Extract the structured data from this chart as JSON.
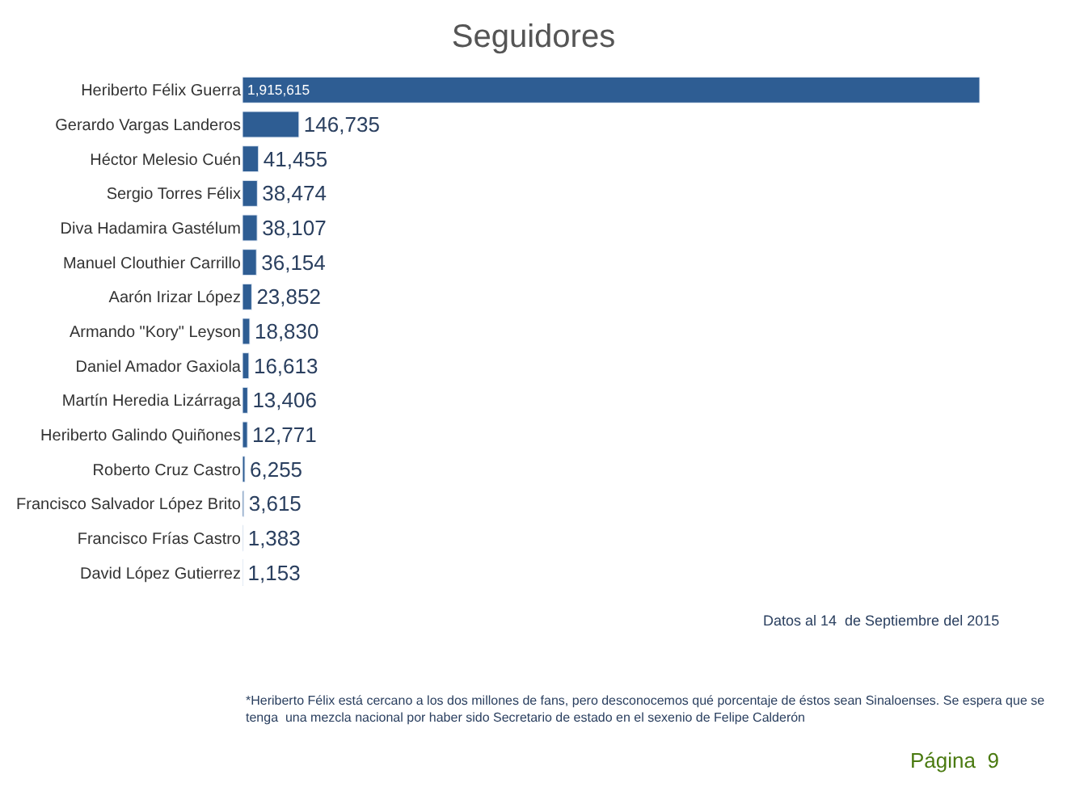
{
  "chart_data": {
    "type": "bar",
    "orientation": "horizontal",
    "title": "Seguidores",
    "categories": [
      "Heriberto Félix Guerra",
      "Gerardo Vargas Landeros",
      "Héctor Melesio Cuén",
      "Sergio Torres Félix",
      "Diva Hadamira Gastélum",
      "Manuel Clouthier Carrillo",
      "Aarón Irizar López",
      "Armando \"Kory\" Leyson",
      "Daniel Amador Gaxiola",
      "Martín Heredia Lizárraga",
      "Heriberto Galindo Quiñones",
      "Roberto Cruz Castro",
      "Francisco Salvador López Brito",
      "Francisco Frías Castro",
      "David López Gutierrez"
    ],
    "values": [
      1915615,
      146735,
      41455,
      38474,
      38107,
      36154,
      23852,
      18830,
      16613,
      13406,
      12771,
      6255,
      3615,
      1383,
      1153
    ],
    "value_labels": [
      "1,915,615",
      "146,735",
      "41,455",
      "38,474",
      "38,107",
      "36,154",
      "23,852",
      "18,830",
      "16,613",
      "13,406",
      "12,771",
      "6,255",
      "3,615",
      "1,383",
      "1,153"
    ],
    "color": "#2e5d93",
    "legend": false,
    "tick_labels": "y",
    "annotations": [
      "Datos al 14  de Septiembre del 2015",
      "*Heriberto Félix está cercano a los dos millones de fans, pero desconocemos qué porcentaje de éstos sean Sinaloenses. Se espera que se\ntenga  una mezcla nacional por haber sido Secretario de estado en el sexenio de Felipe Calderón",
      "Página  9"
    ]
  }
}
